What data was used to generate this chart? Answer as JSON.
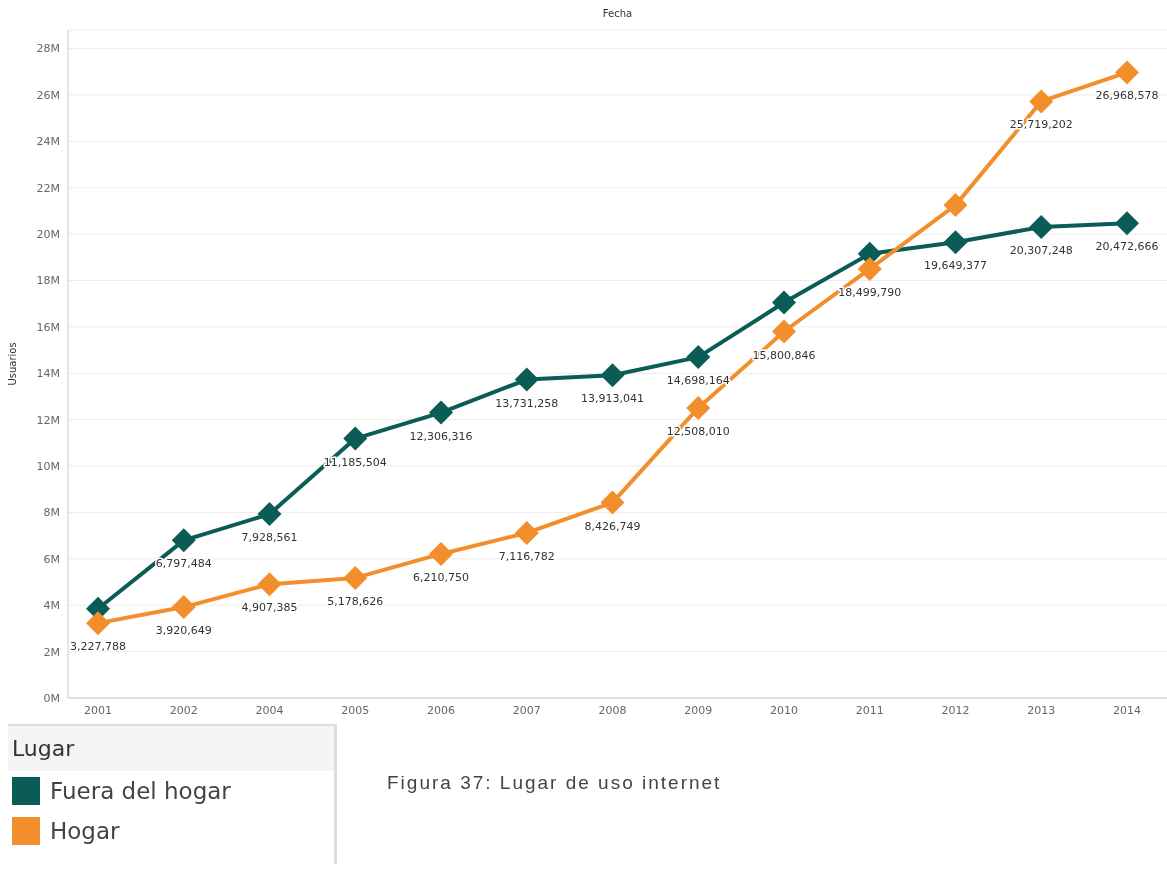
{
  "chart_data": {
    "type": "line",
    "xlabel": "Fecha",
    "ylabel": "Usuarios",
    "legend_title": "Lugar",
    "legend": "bottom left",
    "grid": "y",
    "marker": "diamond",
    "line_style": "solid",
    "categories": [
      "2001",
      "2002",
      "2004",
      "2005",
      "2006",
      "2007",
      "2008",
      "2009",
      "2010",
      "2011",
      "2012",
      "2013",
      "2014"
    ],
    "ylim": [
      0,
      28800000
    ],
    "yticks": [
      {
        "value": 0,
        "label": "0M"
      },
      {
        "value": 2000000,
        "label": "2M"
      },
      {
        "value": 4000000,
        "label": "4M"
      },
      {
        "value": 6000000,
        "label": "6M"
      },
      {
        "value": 8000000,
        "label": "8M"
      },
      {
        "value": 10000000,
        "label": "10M"
      },
      {
        "value": 12000000,
        "label": "12M"
      },
      {
        "value": 14000000,
        "label": "14M"
      },
      {
        "value": 16000000,
        "label": "16M"
      },
      {
        "value": 18000000,
        "label": "18M"
      },
      {
        "value": 20000000,
        "label": "20M"
      },
      {
        "value": 22000000,
        "label": "22M"
      },
      {
        "value": 24000000,
        "label": "24M"
      },
      {
        "value": 26000000,
        "label": "26M"
      },
      {
        "value": 28000000,
        "label": "28M"
      }
    ],
    "series": [
      {
        "name": "Fuera del hogar",
        "color": "#0b5c57",
        "values": [
          3850000,
          6797484,
          7928561,
          11185504,
          12306316,
          13731258,
          13913041,
          14698164,
          17050000,
          19150000,
          19649377,
          20307248,
          20472666
        ],
        "value_labels": [
          null,
          "6,797,484",
          "7,928,561",
          "11,185,504",
          "12,306,316",
          "13,731,258",
          "13,913,041",
          "14,698,164",
          null,
          null,
          "19,649,377",
          "20,307,248",
          "20,472,666"
        ]
      },
      {
        "name": "Hogar",
        "color": "#f28e2b",
        "values": [
          3227788,
          3920649,
          4907385,
          5178626,
          6210750,
          7116782,
          8426749,
          12508010,
          15800846,
          18499790,
          21250000,
          25719202,
          26968578
        ],
        "value_labels": [
          "3,227,788",
          "3,920,649",
          "4,907,385",
          "5,178,626",
          "6,210,750",
          "7,116,782",
          "8,426,749",
          "12,508,010",
          "15,800,846",
          "18,499,790",
          null,
          "25,719,202",
          "26,968,578"
        ]
      }
    ],
    "annotations": [
      "Figura 37: Lugar de uso internet"
    ]
  }
}
